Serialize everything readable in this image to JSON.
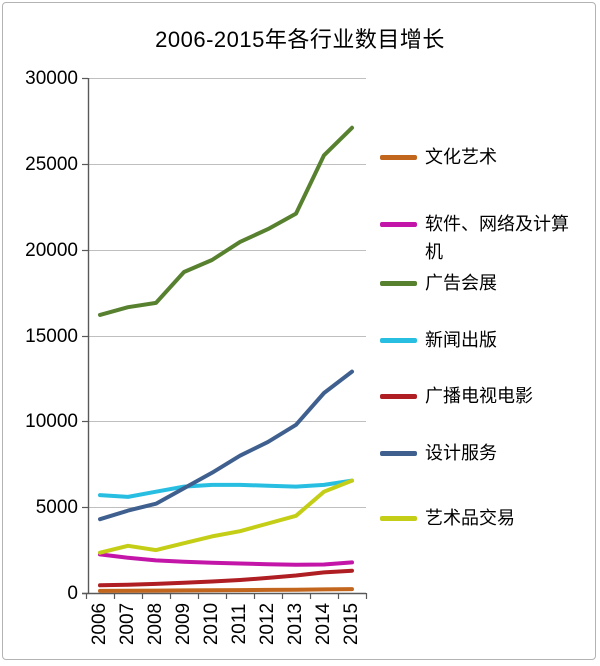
{
  "title": "2006-2015年各行业数目增长",
  "colors": {
    "background": "#ffffff",
    "frame_border": "#b3b3b3",
    "axis": "#595959",
    "gridline": "#bfbfbf",
    "text": "#000000"
  },
  "chart_data": {
    "type": "line",
    "title": "2006-2015年各行业数目增长",
    "xlabel": "",
    "ylabel": "",
    "ylim": [
      0,
      30000
    ],
    "yticks": [
      0,
      5000,
      10000,
      15000,
      20000,
      25000,
      30000
    ],
    "grid": true,
    "legend_position": "right",
    "categories": [
      "2006",
      "2007",
      "2008",
      "2009",
      "2010",
      "2011",
      "2012",
      "2013",
      "2014",
      "2015"
    ],
    "series": [
      {
        "name": "文化艺术",
        "color": "#c2651d",
        "values": [
          120,
          130,
          140,
          150,
          160,
          170,
          180,
          190,
          210,
          230
        ]
      },
      {
        "name": "软件、网络及计算机",
        "color": "#c316a8",
        "values": [
          2250,
          2050,
          1900,
          1820,
          1760,
          1720,
          1680,
          1650,
          1660,
          1780
        ]
      },
      {
        "name": "广告会展",
        "color": "#57812f",
        "values": [
          16200,
          16650,
          16900,
          18700,
          19400,
          20450,
          21200,
          22100,
          25500,
          27100
        ]
      },
      {
        "name": "新闻出版",
        "color": "#27bee2",
        "values": [
          5700,
          5600,
          5900,
          6200,
          6300,
          6300,
          6250,
          6200,
          6300,
          6550
        ]
      },
      {
        "name": "广播电视电影",
        "color": "#af1e23",
        "values": [
          450,
          480,
          530,
          600,
          670,
          760,
          880,
          1020,
          1200,
          1300
        ]
      },
      {
        "name": "设计服务",
        "color": "#3f608f",
        "values": [
          4300,
          4800,
          5200,
          6100,
          7000,
          8000,
          8800,
          9800,
          11650,
          12900
        ]
      },
      {
        "name": "艺术品交易",
        "color": "#c5ce16",
        "values": [
          2350,
          2750,
          2500,
          2900,
          3300,
          3600,
          4050,
          4500,
          5900,
          6550
        ]
      }
    ]
  }
}
